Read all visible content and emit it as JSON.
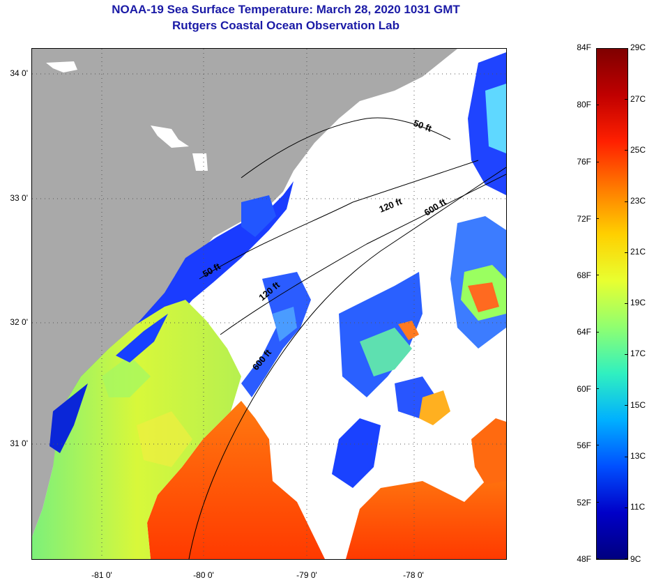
{
  "title_line1": "NOAA-19 Sea Surface Temperature:  March 28, 2020 1031 GMT",
  "title_line2": "Rutgers Coastal Ocean Observation Lab",
  "lat_labels": [
    "34 0'",
    "33 0'",
    "32 0'",
    "31 0'"
  ],
  "lon_labels": [
    "-81 0'",
    "-80 0'",
    "-79 0'",
    "-78 0'"
  ],
  "contour_labels": [
    "50 ft",
    "120 ft",
    "600 ft",
    "50 ft",
    "120 ft",
    "600 ft"
  ],
  "colorbar": {
    "fahrenheit": [
      "84F",
      "80F",
      "76F",
      "72F",
      "68F",
      "64F",
      "60F",
      "56F",
      "52F",
      "48F"
    ],
    "celsius": [
      "29C",
      "27C",
      "25C",
      "23C",
      "21C",
      "19C",
      "17C",
      "15C",
      "13C",
      "11C",
      "9C"
    ],
    "gradient_stops": [
      "#7f0000",
      "#c00000",
      "#ff2000",
      "#ff7a00",
      "#ffd000",
      "#e8ff30",
      "#90ff70",
      "#30f0c0",
      "#00b0ff",
      "#0050ff",
      "#0000c8",
      "#00007f"
    ]
  },
  "colors": {
    "land": "#a9a9a9",
    "cloud": "#ffffff",
    "warm": "#ff5a10",
    "cool_blue": "#1a3cff",
    "green": "#9cff50",
    "title": "#1a1aa6"
  }
}
